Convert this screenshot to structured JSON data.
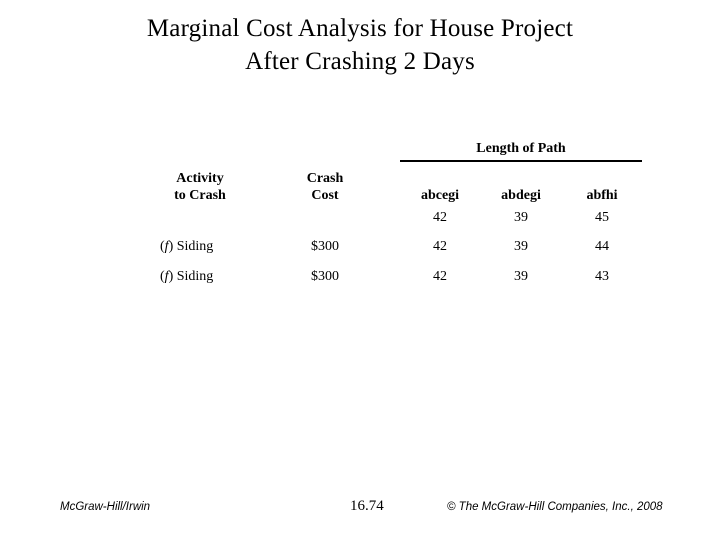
{
  "title": {
    "line1": "Marginal Cost Analysis for House Project",
    "line2": "After Crashing 2 Days"
  },
  "table": {
    "span_header": "Length of Path",
    "headers": {
      "activity_line1": "Activity",
      "activity_line2": "to Crash",
      "cost_line1": "Crash",
      "cost_line2": "Cost",
      "paths": [
        "abcegi",
        "abdegi",
        "abfhi"
      ]
    },
    "initial_lengths": [
      "42",
      "39",
      "45"
    ],
    "rows": [
      {
        "activity_pre": "(",
        "activity_f": "f",
        "activity_post": ") Siding",
        "cost": "$300",
        "lengths": [
          "42",
          "39",
          "44"
        ]
      },
      {
        "activity_pre": "(",
        "activity_f": "f",
        "activity_post": ") Siding",
        "cost": "$300",
        "lengths": [
          "42",
          "39",
          "43"
        ]
      }
    ]
  },
  "footer": {
    "left": "McGraw-Hill/Irwin",
    "page": "16.74",
    "right": "© The McGraw-Hill Companies, Inc., 2008"
  },
  "colors": {
    "text": "#000000",
    "background": "#ffffff"
  }
}
